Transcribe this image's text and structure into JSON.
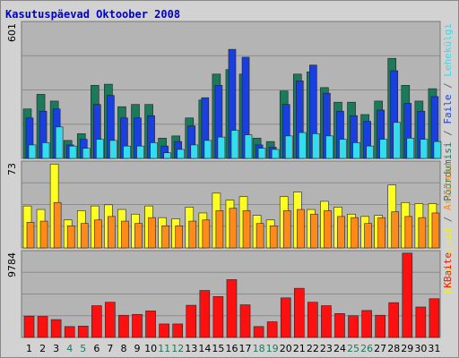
{
  "title": "Kasutuspäevad Oktoober 2008",
  "colors": {
    "background": "#d2d2d2",
    "plot": "#b4b4b4",
    "grid": "#8c8c8c",
    "pages": "#1a7a5a",
    "files": "#1a3fe0",
    "hits": "#33ddee",
    "visits": "#ffff22",
    "visitors": "#ff8a1a",
    "kbytes": "#ff1010",
    "weekend_label": "#1a7a5a"
  },
  "chart_data": [
    {
      "type": "bar",
      "ylim": [
        0,
        601
      ],
      "ymax_label": "601",
      "legend_vertical": [
        {
          "text": "Pöördumisi",
          "color": "#1a7a5a"
        },
        {
          "text": " / ",
          "color": "#666666"
        },
        {
          "text": "Faile",
          "color": "#1a3fe0"
        },
        {
          "text": " / ",
          "color": "#666666"
        },
        {
          "text": "Lehekülgi",
          "color": "#33ddee"
        }
      ],
      "series": [
        {
          "name": "Pöördumisi",
          "values": [
            220,
            285,
            255,
            80,
            110,
            325,
            330,
            230,
            240,
            240,
            90,
            100,
            180,
            260,
            375,
            395,
            375,
            90,
            75,
            300,
            375,
            385,
            315,
            250,
            250,
            195,
            255,
            445,
            325,
            255,
            310
          ]
        },
        {
          "name": "Faile",
          "values": [
            180,
            210,
            220,
            60,
            85,
            240,
            280,
            180,
            180,
            190,
            55,
            75,
            145,
            270,
            325,
            485,
            450,
            60,
            50,
            240,
            345,
            415,
            290,
            210,
            190,
            165,
            215,
            390,
            245,
            210,
            275
          ]
        },
        {
          "name": "Lehekülgi",
          "values": [
            60,
            70,
            140,
            55,
            45,
            85,
            80,
            55,
            55,
            70,
            25,
            40,
            60,
            80,
            95,
            125,
            105,
            45,
            40,
            100,
            115,
            110,
            100,
            85,
            70,
            55,
            85,
            160,
            90,
            85,
            75
          ]
        }
      ]
    },
    {
      "type": "bar",
      "ylim": [
        0,
        73
      ],
      "ymax_label": "73",
      "legend_vertical": [
        {
          "text": "Külastajaid",
          "color": "#eeee22"
        },
        {
          "text": " / ",
          "color": "#666666"
        },
        {
          "text": "Arvuteid",
          "color": "#ff8a1a"
        }
      ],
      "series": [
        {
          "name": "Külastajaid",
          "values": [
            36,
            33,
            72,
            24,
            32,
            36,
            37,
            33,
            29,
            36,
            26,
            25,
            35,
            30,
            47,
            41,
            44,
            28,
            24,
            44,
            48,
            33,
            40,
            35,
            29,
            27,
            28,
            54,
            39,
            38,
            38
          ]
        },
        {
          "name": "Arvuteid",
          "values": [
            22,
            23,
            39,
            19,
            21,
            24,
            27,
            23,
            21,
            26,
            19,
            19,
            23,
            24,
            32,
            34,
            32,
            21,
            19,
            32,
            33,
            29,
            32,
            27,
            26,
            21,
            26,
            31,
            27,
            26,
            30
          ]
        }
      ]
    },
    {
      "type": "bar",
      "ylim": [
        0,
        9784
      ],
      "ymax_label": "9784",
      "legend_vertical": [
        {
          "text": "KBaite",
          "color": "#ff1010"
        }
      ],
      "series": [
        {
          "name": "KBaite",
          "values": [
            2450,
            2420,
            2050,
            1250,
            1300,
            3650,
            4050,
            2550,
            2650,
            3050,
            1550,
            1550,
            3700,
            5400,
            4700,
            6650,
            3750,
            1250,
            1800,
            4550,
            5650,
            4050,
            3650,
            2750,
            2500,
            3100,
            2550,
            4000,
            9700,
            3500,
            4450
          ]
        }
      ]
    }
  ],
  "days": [
    "1",
    "2",
    "3",
    "4",
    "5",
    "6",
    "7",
    "8",
    "9",
    "10",
    "11",
    "12",
    "13",
    "14",
    "15",
    "16",
    "17",
    "18",
    "19",
    "20",
    "21",
    "22",
    "23",
    "24",
    "25",
    "26",
    "27",
    "28",
    "29",
    "30",
    "31"
  ],
  "weekend_days": [
    "4",
    "5",
    "11",
    "12",
    "18",
    "19",
    "25",
    "26"
  ]
}
